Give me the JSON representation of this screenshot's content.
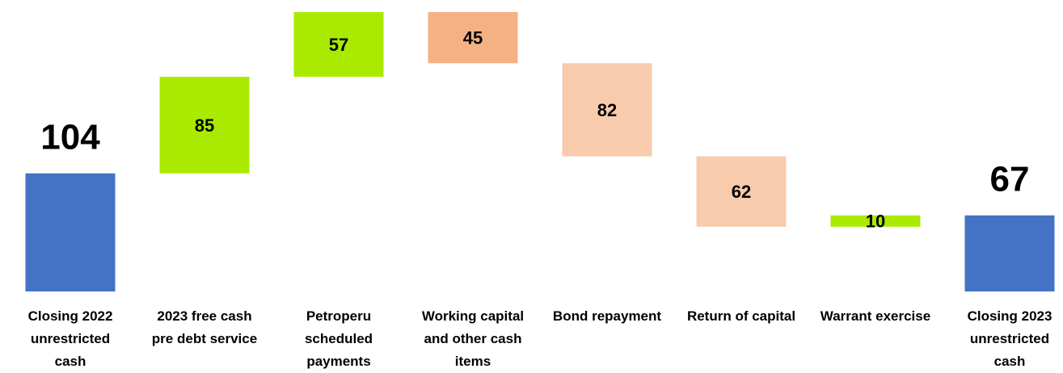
{
  "chart_data": {
    "type": "waterfall",
    "categories": [
      "Closing 2022 unrestricted cash",
      "2023 free cash pre debt service",
      "Petroperu scheduled payments",
      "Working capital and other cash items",
      "Bond repayment",
      "Return of capital",
      "Warrant exercise",
      "Closing 2023 unrestricted cash"
    ],
    "values": [
      104,
      85,
      57,
      -45,
      -82,
      -62,
      10,
      67
    ],
    "value_labels": [
      "104",
      "85",
      "57",
      "45",
      "82",
      "62",
      "10",
      "67"
    ],
    "measures": [
      "total",
      "relative",
      "relative",
      "relative",
      "relative",
      "relative",
      "relative",
      "total"
    ],
    "colors": [
      "#4472c4",
      "#aaea00",
      "#aaea00",
      "#f4b183",
      "#f8cbad",
      "#f8cbad",
      "#aaea00",
      "#4472c4"
    ]
  }
}
